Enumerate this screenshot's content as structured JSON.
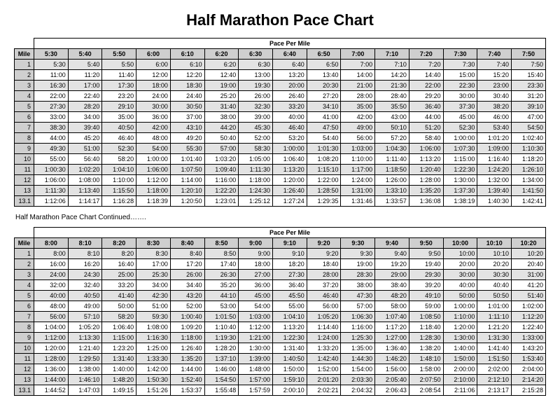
{
  "title": "Half Marathon Pace Chart",
  "continued_label": "Half Marathon Pace Chart Continued…….",
  "mile_label": "Mile",
  "group_label": "Pace Per Mile",
  "colors": {
    "background": "#ffffff",
    "border": "#000000",
    "header_fill": "#cfcfcf",
    "row_shade": "#e3e3e3",
    "text": "#000000"
  },
  "typography": {
    "title_fontsize_pt": 22,
    "body_fontsize_pt": 9,
    "continued_fontsize_pt": 10,
    "title_weight": "bold"
  },
  "miles": [
    "1",
    "2",
    "3",
    "4",
    "5",
    "6",
    "7",
    "8",
    "9",
    "10",
    "11",
    "12",
    "13",
    "13.1"
  ],
  "table1": {
    "paces": [
      "5:30",
      "5:40",
      "5:50",
      "6:00",
      "6:10",
      "6:20",
      "6:30",
      "6:40",
      "6:50",
      "7:00",
      "7:10",
      "7:20",
      "7:30",
      "7:40",
      "7:50"
    ],
    "rows": [
      [
        "5:30",
        "5:40",
        "5:50",
        "6:00",
        "6:10",
        "6:20",
        "6:30",
        "6:40",
        "6:50",
        "7:00",
        "7:10",
        "7:20",
        "7:30",
        "7:40",
        "7:50"
      ],
      [
        "11:00",
        "11:20",
        "11:40",
        "12:00",
        "12:20",
        "12:40",
        "13:00",
        "13:20",
        "13:40",
        "14:00",
        "14:20",
        "14:40",
        "15:00",
        "15:20",
        "15:40"
      ],
      [
        "16:30",
        "17:00",
        "17:30",
        "18:00",
        "18:30",
        "19:00",
        "19:30",
        "20:00",
        "20:30",
        "21:00",
        "21:30",
        "22:00",
        "22:30",
        "23:00",
        "23:30"
      ],
      [
        "22:00",
        "22:40",
        "23:20",
        "24:00",
        "24:40",
        "25:20",
        "26:00",
        "26:40",
        "27:20",
        "28:00",
        "28:40",
        "29:20",
        "30:00",
        "30:40",
        "31:20"
      ],
      [
        "27:30",
        "28:20",
        "29:10",
        "30:00",
        "30:50",
        "31:40",
        "32:30",
        "33:20",
        "34:10",
        "35:00",
        "35:50",
        "36:40",
        "37:30",
        "38:20",
        "39:10"
      ],
      [
        "33:00",
        "34:00",
        "35:00",
        "36:00",
        "37:00",
        "38:00",
        "39:00",
        "40:00",
        "41:00",
        "42:00",
        "43:00",
        "44:00",
        "45:00",
        "46:00",
        "47:00"
      ],
      [
        "38:30",
        "39:40",
        "40:50",
        "42:00",
        "43:10",
        "44:20",
        "45:30",
        "46:40",
        "47:50",
        "49:00",
        "50:10",
        "51:20",
        "52:30",
        "53:40",
        "54:50"
      ],
      [
        "44:00",
        "45:20",
        "46:40",
        "48:00",
        "49:20",
        "50:40",
        "52:00",
        "53:20",
        "54:40",
        "56:00",
        "57:20",
        "58:40",
        "1:00:00",
        "1:01:20",
        "1:02:40"
      ],
      [
        "49:30",
        "51:00",
        "52:30",
        "54:00",
        "55:30",
        "57:00",
        "58:30",
        "1:00:00",
        "1:01:30",
        "1:03:00",
        "1:04:30",
        "1:06:00",
        "1:07:30",
        "1:09:00",
        "1:10:30"
      ],
      [
        "55:00",
        "56:40",
        "58:20",
        "1:00:00",
        "1:01:40",
        "1:03:20",
        "1:05:00",
        "1:06:40",
        "1:08:20",
        "1:10:00",
        "1:11:40",
        "1:13:20",
        "1:15:00",
        "1:16:40",
        "1:18:20"
      ],
      [
        "1:00:30",
        "1:02:20",
        "1:04:10",
        "1:06:00",
        "1:07:50",
        "1:09:40",
        "1:11:30",
        "1:13:20",
        "1:15:10",
        "1:17:00",
        "1:18:50",
        "1:20:40",
        "1:22:30",
        "1:24:20",
        "1:26:10"
      ],
      [
        "1:06:00",
        "1:08:00",
        "1:10:00",
        "1:12:00",
        "1:14:00",
        "1:16:00",
        "1:18:00",
        "1:20:00",
        "1:22:00",
        "1:24:00",
        "1:26:00",
        "1:28:00",
        "1:30:00",
        "1:32:00",
        "1:34:00"
      ],
      [
        "1:11:30",
        "1:13:40",
        "1:15:50",
        "1:18:00",
        "1:20:10",
        "1:22:20",
        "1:24:30",
        "1:26:40",
        "1:28:50",
        "1:31:00",
        "1:33:10",
        "1:35:20",
        "1:37:30",
        "1:39:40",
        "1:41:50"
      ],
      [
        "1:12:06",
        "1:14:17",
        "1:16:28",
        "1:18:39",
        "1:20:50",
        "1:23:01",
        "1:25:12",
        "1:27:24",
        "1:29:35",
        "1:31:46",
        "1:33:57",
        "1:36:08",
        "1:38:19",
        "1:40:30",
        "1:42:41"
      ]
    ]
  },
  "table2": {
    "paces": [
      "8:00",
      "8:10",
      "8:20",
      "8:30",
      "8:40",
      "8:50",
      "9:00",
      "9:10",
      "9:20",
      "9:30",
      "9:40",
      "9:50",
      "10:00",
      "10:10",
      "10:20"
    ],
    "rows": [
      [
        "8:00",
        "8:10",
        "8:20",
        "8:30",
        "8:40",
        "8:50",
        "9:00",
        "9:10",
        "9:20",
        "9:30",
        "9:40",
        "9:50",
        "10:00",
        "10:10",
        "10:20"
      ],
      [
        "16:00",
        "16:20",
        "16:40",
        "17:00",
        "17:20",
        "17:40",
        "18:00",
        "18:20",
        "18:40",
        "19:00",
        "19:20",
        "19:40",
        "20:00",
        "20:20",
        "20:40"
      ],
      [
        "24:00",
        "24:30",
        "25:00",
        "25:30",
        "26:00",
        "26:30",
        "27:00",
        "27:30",
        "28:00",
        "28:30",
        "29:00",
        "29:30",
        "30:00",
        "30:30",
        "31:00"
      ],
      [
        "32:00",
        "32:40",
        "33:20",
        "34:00",
        "34:40",
        "35:20",
        "36:00",
        "36:40",
        "37:20",
        "38:00",
        "38:40",
        "39:20",
        "40:00",
        "40:40",
        "41:20"
      ],
      [
        "40:00",
        "40:50",
        "41:40",
        "42:30",
        "43:20",
        "44:10",
        "45:00",
        "45:50",
        "46:40",
        "47:30",
        "48:20",
        "49:10",
        "50:00",
        "50:50",
        "51:40"
      ],
      [
        "48:00",
        "49:00",
        "50:00",
        "51:00",
        "52:00",
        "53:00",
        "54:00",
        "55:00",
        "56:00",
        "57:00",
        "58:00",
        "59:00",
        "1:00:00",
        "1:01:00",
        "1:02:00"
      ],
      [
        "56:00",
        "57:10",
        "58:20",
        "59:30",
        "1:00:40",
        "1:01:50",
        "1:03:00",
        "1:04:10",
        "1:05:20",
        "1:06:30",
        "1:07:40",
        "1:08:50",
        "1:10:00",
        "1:11:10",
        "1:12:20"
      ],
      [
        "1:04:00",
        "1:05:20",
        "1:06:40",
        "1:08:00",
        "1:09:20",
        "1:10:40",
        "1:12:00",
        "1:13:20",
        "1:14:40",
        "1:16:00",
        "1:17:20",
        "1:18:40",
        "1:20:00",
        "1:21:20",
        "1:22:40"
      ],
      [
        "1:12:00",
        "1:13:30",
        "1:15:00",
        "1:16:30",
        "1:18:00",
        "1:19:30",
        "1:21:00",
        "1:22:30",
        "1:24:00",
        "1:25:30",
        "1:27:00",
        "1:28:30",
        "1:30:00",
        "1:31:30",
        "1:33:00"
      ],
      [
        "1:20:00",
        "1:21:40",
        "1:23:20",
        "1:25:00",
        "1:26:40",
        "1:28:20",
        "1:30:00",
        "1:31:40",
        "1:33:20",
        "1:35:00",
        "1:36:40",
        "1:38:20",
        "1:40:00",
        "1:41:40",
        "1:43:20"
      ],
      [
        "1:28:00",
        "1:29:50",
        "1:31:40",
        "1:33:30",
        "1:35:20",
        "1:37:10",
        "1:39:00",
        "1:40:50",
        "1:42:40",
        "1:44:30",
        "1:46:20",
        "1:48:10",
        "1:50:00",
        "1:51:50",
        "1:53:40"
      ],
      [
        "1:36:00",
        "1:38:00",
        "1:40:00",
        "1:42:00",
        "1:44:00",
        "1:46:00",
        "1:48:00",
        "1:50:00",
        "1:52:00",
        "1:54:00",
        "1:56:00",
        "1:58:00",
        "2:00:00",
        "2:02:00",
        "2:04:00"
      ],
      [
        "1:44:00",
        "1:46:10",
        "1:48:20",
        "1:50:30",
        "1:52:40",
        "1:54:50",
        "1:57:00",
        "1:59:10",
        "2:01:20",
        "2:03:30",
        "2:05:40",
        "2:07:50",
        "2:10:00",
        "2:12:10",
        "2:14:20"
      ],
      [
        "1:44:52",
        "1:47:03",
        "1:49:15",
        "1:51:26",
        "1:53:37",
        "1:55:48",
        "1:57:59",
        "2:00:10",
        "2:02:21",
        "2:04:32",
        "2:06:43",
        "2:08:54",
        "2:11:06",
        "2:13:17",
        "2:15:28"
      ]
    ]
  }
}
